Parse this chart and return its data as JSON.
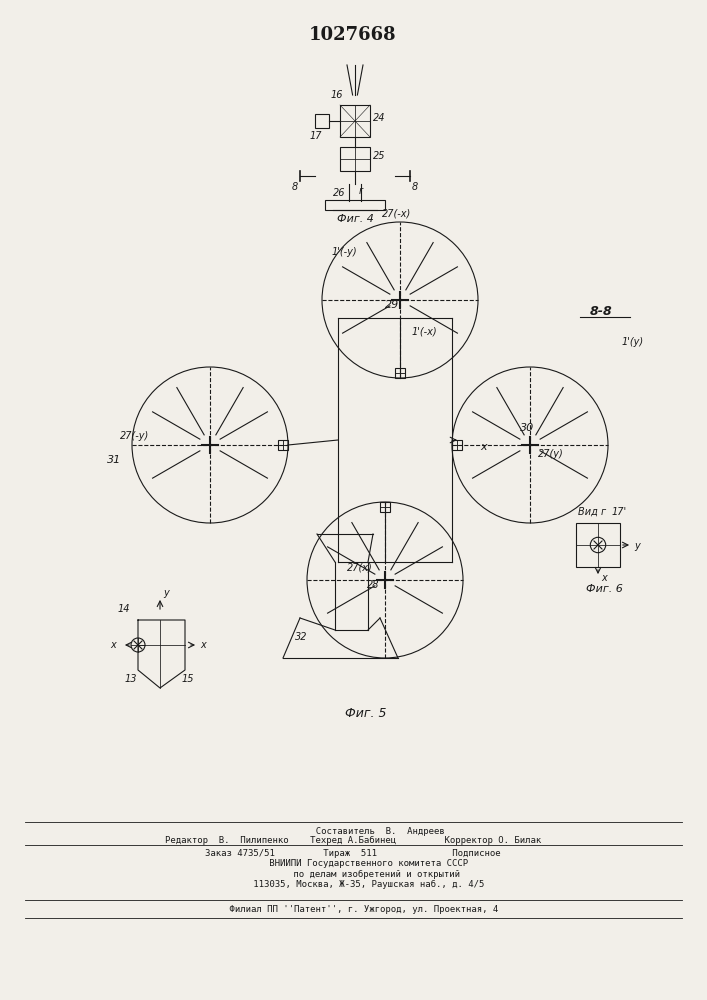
{
  "title": "1027668",
  "bg_color": "#f2efe9",
  "line_color": "#1a1a1a",
  "footer_lines": [
    "          Составитель  В.  Андреев",
    "Редактор  В.  Пилипенко    Техред А.Бабинец         Корректор О. Билак",
    "Заказ 4735/51         Тираж  511              Подписное",
    "      ВНИИПИ Государственного комитета СССР",
    "         по делам изобретений и открытий",
    "      113035, Москва, Ж-35, Раушская наб., д. 4/5",
    "    Филиал ПП ''Патент'', г. Ужгород, ул. Проектная, 4"
  ]
}
